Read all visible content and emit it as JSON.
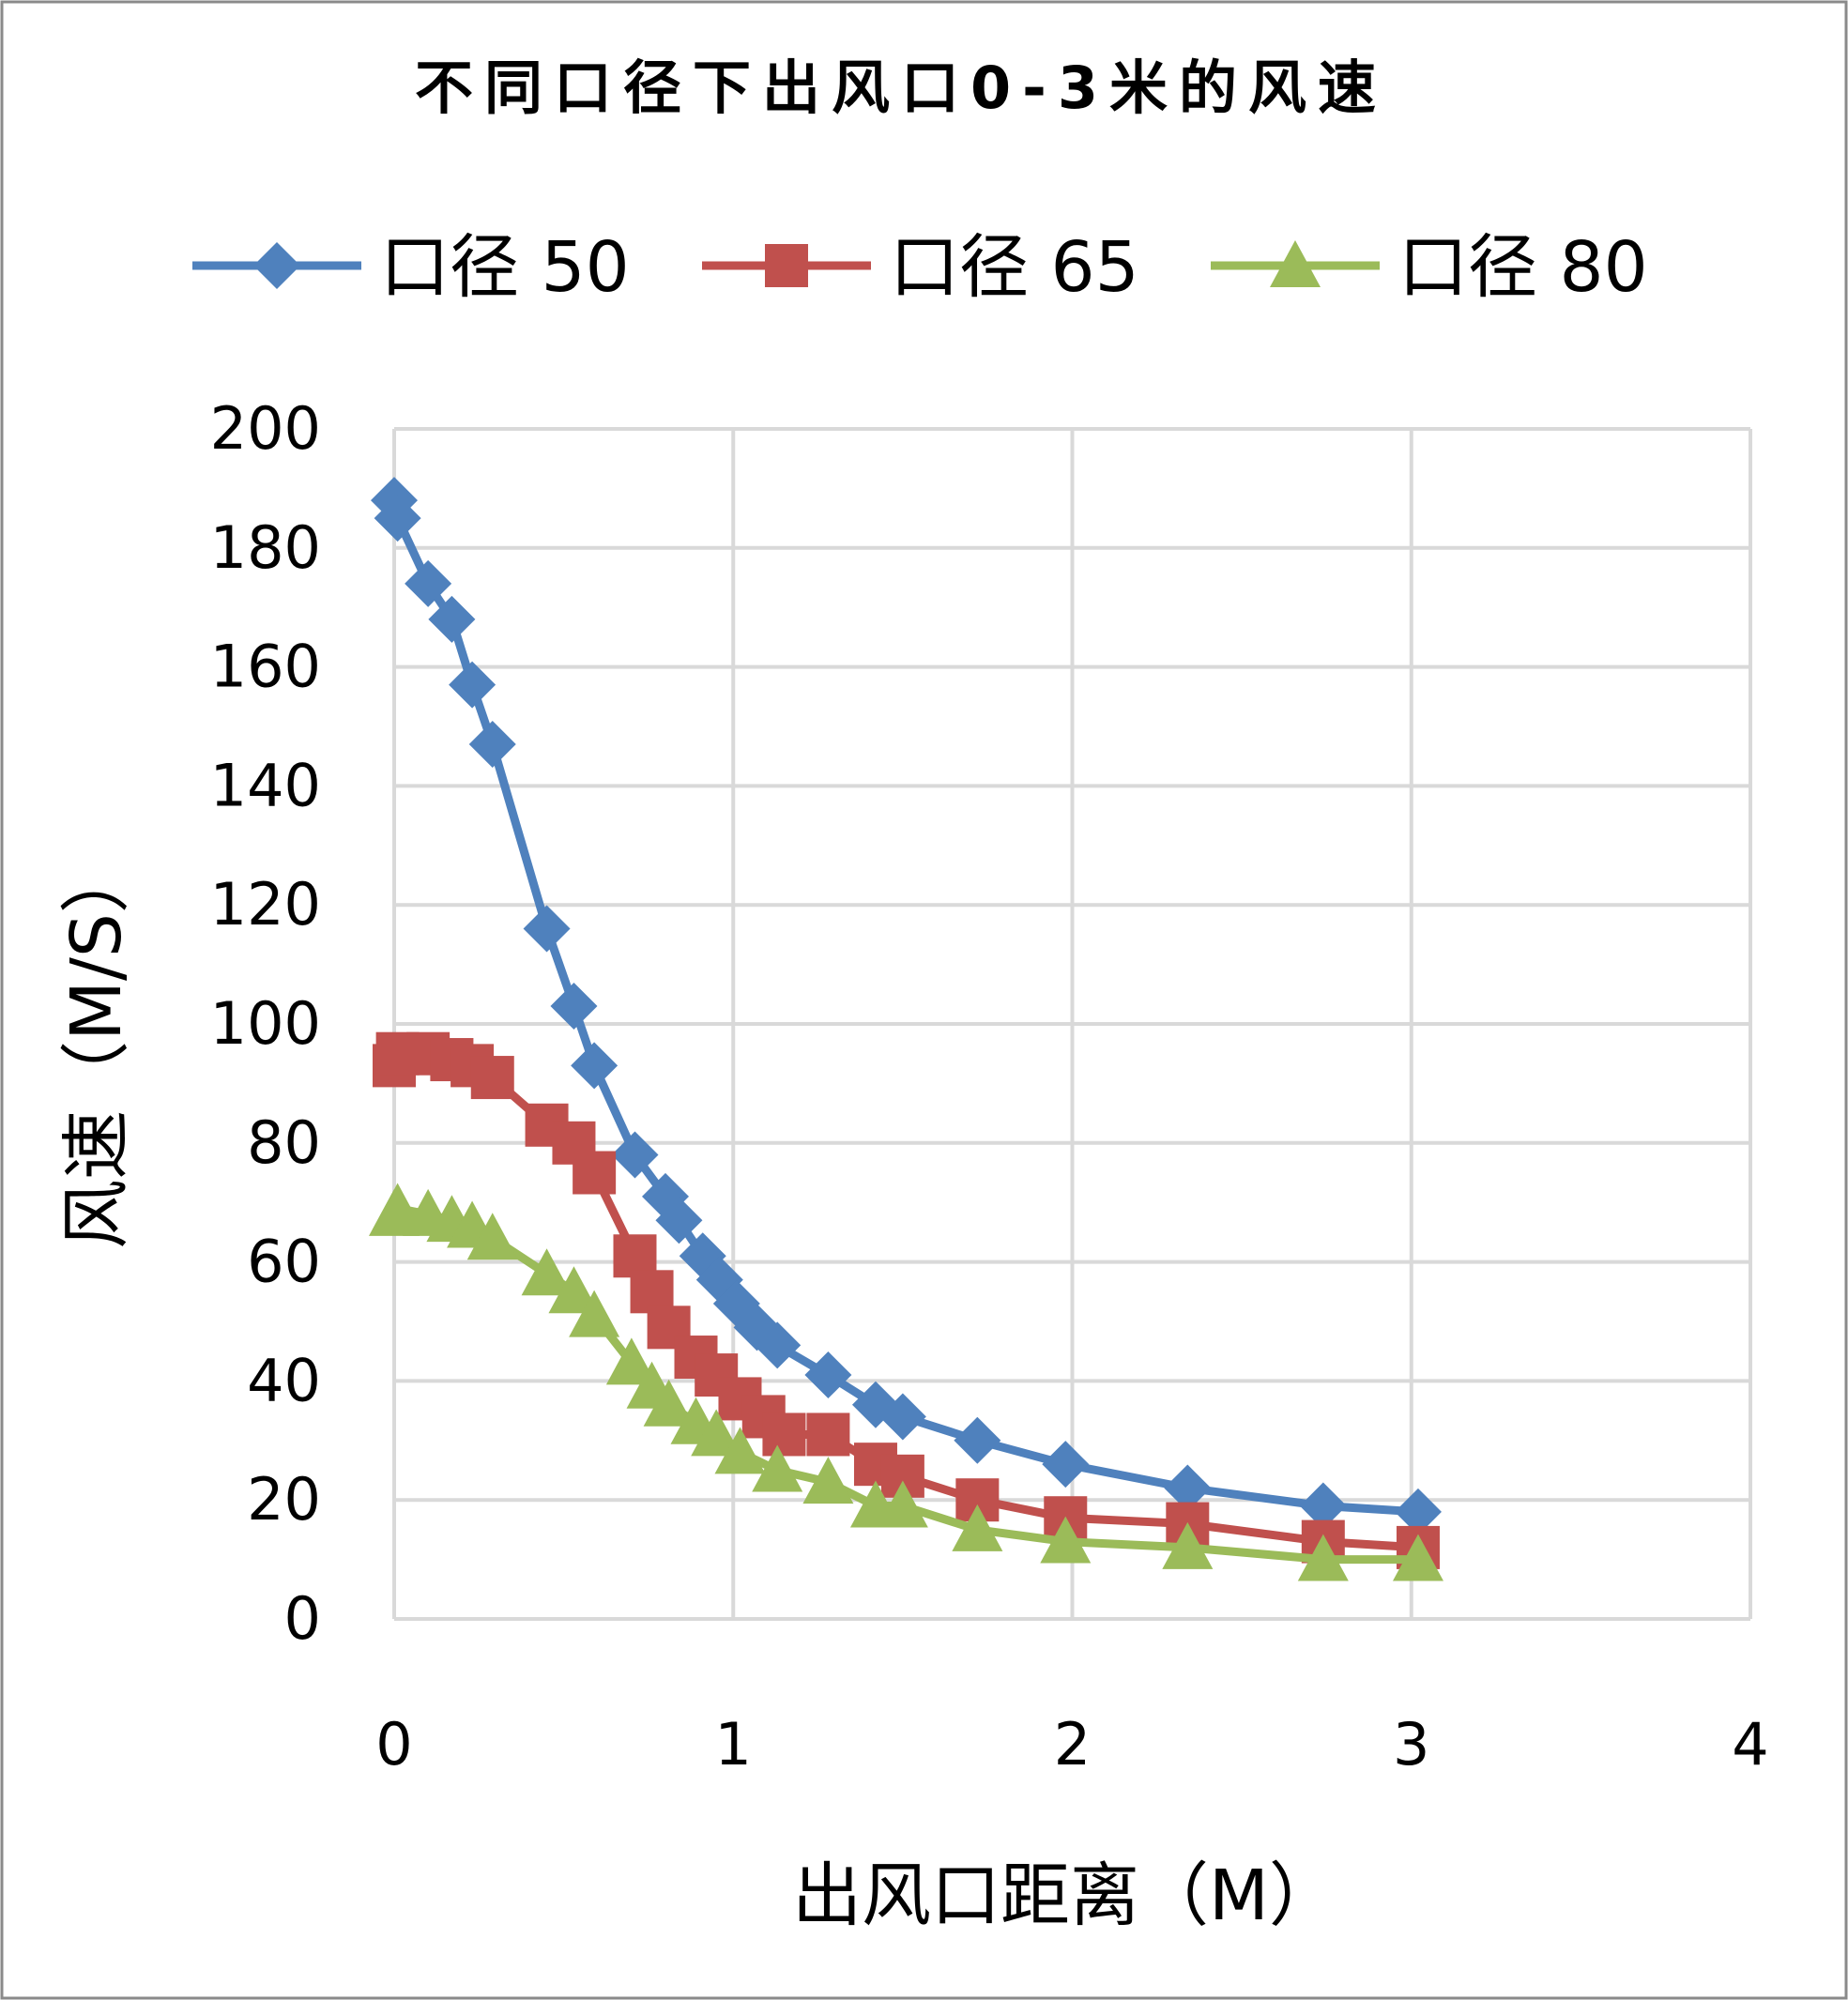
{
  "chart_data": {
    "type": "line",
    "title": "不同口径下出风口0-3米的风速",
    "xlabel": "出风口距离（M）",
    "ylabel": "风速（M/S）",
    "xlim": [
      0,
      4
    ],
    "ylim": [
      0,
      200
    ],
    "x_ticks": [
      "0",
      "1",
      "2",
      "3",
      "4"
    ],
    "y_ticks": [
      "0",
      "20",
      "40",
      "60",
      "80",
      "100",
      "120",
      "140",
      "160",
      "180",
      "200"
    ],
    "grid": true,
    "legend_position": "top",
    "series": [
      {
        "name": "口径 50",
        "color": "#4F81BD",
        "marker": "diamond",
        "points": [
          [
            0.0,
            188
          ],
          [
            0.01,
            185
          ],
          [
            0.1,
            174
          ],
          [
            0.17,
            168
          ],
          [
            0.23,
            157
          ],
          [
            0.29,
            147
          ],
          [
            0.45,
            116
          ],
          [
            0.53,
            103
          ],
          [
            0.59,
            93
          ],
          [
            0.71,
            78
          ],
          [
            0.8,
            71
          ],
          [
            0.84,
            67
          ],
          [
            0.91,
            61
          ],
          [
            0.96,
            57
          ],
          [
            1.01,
            53
          ],
          [
            1.07,
            49
          ],
          [
            1.13,
            46
          ],
          [
            1.28,
            41
          ],
          [
            1.42,
            36
          ],
          [
            1.5,
            34
          ],
          [
            1.72,
            30
          ],
          [
            1.98,
            26
          ],
          [
            2.34,
            22
          ],
          [
            2.74,
            19
          ],
          [
            3.02,
            18
          ]
        ]
      },
      {
        "name": "口径 65",
        "color": "#C0504D",
        "marker": "square",
        "points": [
          [
            0.0,
            93
          ],
          [
            0.01,
            95
          ],
          [
            0.1,
            95
          ],
          [
            0.17,
            94
          ],
          [
            0.23,
            93
          ],
          [
            0.29,
            91
          ],
          [
            0.45,
            83
          ],
          [
            0.53,
            80
          ],
          [
            0.59,
            75
          ],
          [
            0.71,
            61
          ],
          [
            0.76,
            55
          ],
          [
            0.81,
            49
          ],
          [
            0.89,
            44
          ],
          [
            0.95,
            41
          ],
          [
            1.02,
            37
          ],
          [
            1.09,
            34
          ],
          [
            1.15,
            31
          ],
          [
            1.28,
            31
          ],
          [
            1.42,
            26
          ],
          [
            1.5,
            24
          ],
          [
            1.72,
            20
          ],
          [
            1.98,
            17
          ],
          [
            2.34,
            16
          ],
          [
            2.74,
            13
          ],
          [
            3.02,
            12
          ]
        ]
      },
      {
        "name": "口径 80",
        "color": "#9BBB59",
        "marker": "triangle",
        "points": [
          [
            0.0,
            68
          ],
          [
            0.01,
            69
          ],
          [
            0.1,
            68
          ],
          [
            0.17,
            67
          ],
          [
            0.23,
            66
          ],
          [
            0.29,
            64
          ],
          [
            0.45,
            58
          ],
          [
            0.53,
            55
          ],
          [
            0.59,
            51
          ],
          [
            0.7,
            43
          ],
          [
            0.76,
            39
          ],
          [
            0.81,
            36
          ],
          [
            0.89,
            33
          ],
          [
            0.95,
            31
          ],
          [
            1.02,
            28
          ],
          [
            1.13,
            25
          ],
          [
            1.28,
            23
          ],
          [
            1.42,
            19
          ],
          [
            1.5,
            19
          ],
          [
            1.72,
            15
          ],
          [
            1.98,
            13
          ],
          [
            2.34,
            12
          ],
          [
            2.74,
            10
          ],
          [
            3.02,
            10
          ]
        ]
      }
    ]
  }
}
